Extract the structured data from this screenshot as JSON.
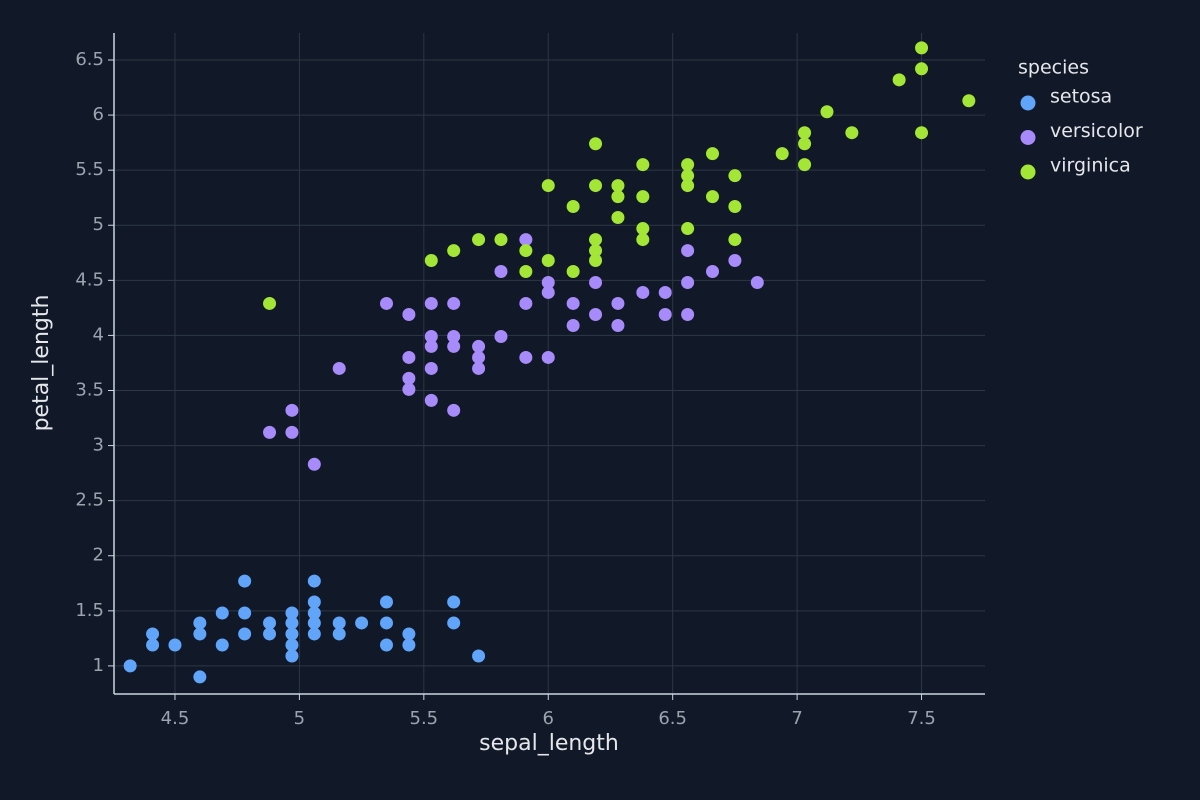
{
  "chart_data": {
    "type": "scatter",
    "x_label": "sepal_length",
    "y_label": "petal_length",
    "legend_title": "species",
    "legend_position": "right",
    "grid": true,
    "xlim": [
      4.255,
      7.755
    ],
    "ylim": [
      0.745,
      6.745
    ],
    "xticks": [
      4.5,
      5,
      5.5,
      6,
      6.5,
      7,
      7.5
    ],
    "yticks": [
      1,
      1.5,
      2,
      2.5,
      3,
      3.5,
      4,
      4.5,
      5,
      5.5,
      6,
      6.5
    ],
    "series": [
      {
        "name": "setosa",
        "color": "#60a5fa",
        "x": [
          4.32,
          4.41,
          4.41,
          4.5,
          4.6,
          4.6,
          4.6,
          4.69,
          4.69,
          4.78,
          4.78,
          4.78,
          4.88,
          4.88,
          4.97,
          4.97,
          4.97,
          4.97,
          4.97,
          5.06,
          5.06,
          5.06,
          5.06,
          5.06,
          5.16,
          5.16,
          5.25,
          5.35,
          5.35,
          5.35,
          5.44,
          5.44,
          5.62,
          5.62,
          5.72
        ],
        "y": [
          1.0,
          1.29,
          1.19,
          1.19,
          0.9,
          1.29,
          1.39,
          1.19,
          1.48,
          1.29,
          1.48,
          1.77,
          1.29,
          1.39,
          1.09,
          1.19,
          1.29,
          1.39,
          1.48,
          1.29,
          1.39,
          1.48,
          1.58,
          1.77,
          1.29,
          1.39,
          1.39,
          1.19,
          1.39,
          1.58,
          1.19,
          1.29,
          1.39,
          1.58,
          1.09
        ]
      },
      {
        "name": "versicolor",
        "color": "#a78bfa",
        "x": [
          4.88,
          4.97,
          4.97,
          5.06,
          5.16,
          5.35,
          5.44,
          5.44,
          5.44,
          5.44,
          5.53,
          5.53,
          5.53,
          5.53,
          5.53,
          5.62,
          5.62,
          5.62,
          5.62,
          5.72,
          5.72,
          5.72,
          5.81,
          5.81,
          5.91,
          5.91,
          5.91,
          6.0,
          6.0,
          6.0,
          6.1,
          6.1,
          6.19,
          6.19,
          6.28,
          6.28,
          6.38,
          6.47,
          6.47,
          6.56,
          6.56,
          6.56,
          6.66,
          6.75,
          6.84
        ],
        "y": [
          3.12,
          3.32,
          3.12,
          2.83,
          3.7,
          4.29,
          4.19,
          3.8,
          3.61,
          3.51,
          4.29,
          3.99,
          3.9,
          3.7,
          3.41,
          4.29,
          3.99,
          3.9,
          3.32,
          3.9,
          3.8,
          3.7,
          3.99,
          4.58,
          4.87,
          4.29,
          3.8,
          4.48,
          4.39,
          3.8,
          4.29,
          4.09,
          4.48,
          4.19,
          4.29,
          4.09,
          4.39,
          4.39,
          4.19,
          4.77,
          4.48,
          4.19,
          4.58,
          4.68,
          4.48
        ]
      },
      {
        "name": "virginica",
        "color": "#a3e635",
        "x": [
          4.88,
          5.53,
          5.62,
          5.72,
          5.81,
          5.91,
          5.91,
          6.0,
          6.0,
          6.1,
          6.1,
          6.19,
          6.19,
          6.19,
          6.19,
          6.19,
          6.28,
          6.28,
          6.28,
          6.38,
          6.38,
          6.38,
          6.38,
          6.56,
          6.56,
          6.56,
          6.56,
          6.66,
          6.66,
          6.75,
          6.75,
          6.75,
          6.94,
          7.03,
          7.03,
          7.03,
          7.12,
          7.22,
          7.41,
          7.5,
          7.5,
          7.5,
          7.69
        ],
        "y": [
          4.29,
          4.68,
          4.77,
          4.87,
          4.87,
          4.77,
          4.58,
          5.36,
          4.68,
          5.17,
          4.58,
          5.74,
          5.36,
          4.87,
          4.77,
          4.68,
          5.36,
          5.26,
          5.07,
          5.55,
          5.26,
          4.97,
          4.87,
          5.55,
          5.45,
          5.36,
          4.97,
          5.65,
          5.26,
          5.45,
          5.17,
          4.87,
          5.65,
          5.84,
          5.74,
          5.55,
          6.03,
          5.84,
          6.32,
          6.61,
          6.42,
          5.84,
          6.13
        ]
      }
    ]
  }
}
